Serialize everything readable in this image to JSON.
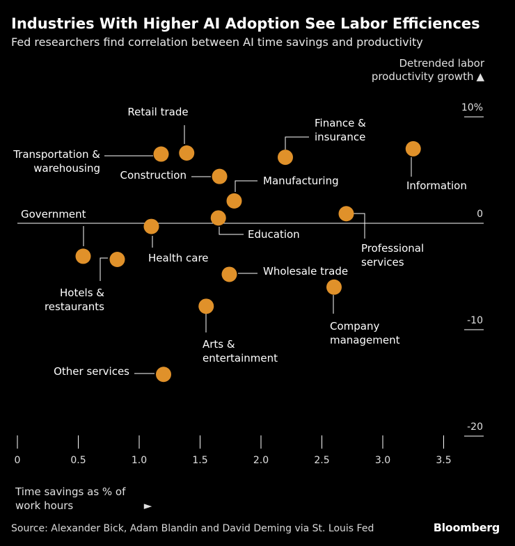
{
  "chart_data": {
    "type": "scatter",
    "title": "Industries With Higher AI Adoption See Labor Efficiences",
    "subtitle": "Fed researchers find correlation between AI time savings and productivity",
    "xlabel": "Time savings as % of work hours",
    "ylabel": "Detrended labor productivity growth",
    "xlim": [
      0,
      3.8
    ],
    "ylim": [
      -20,
      10
    ],
    "x_ticks": [
      {
        "value": 0,
        "label": "0"
      },
      {
        "value": 0.5,
        "label": "0.5"
      },
      {
        "value": 1.0,
        "label": "1.0"
      },
      {
        "value": 1.5,
        "label": "1.5"
      },
      {
        "value": 2.0,
        "label": "2.0"
      },
      {
        "value": 2.5,
        "label": "2.5"
      },
      {
        "value": 3.0,
        "label": "3.0"
      },
      {
        "value": 3.5,
        "label": "3.5"
      }
    ],
    "y_ticks": [
      {
        "value": 10,
        "label": "10%"
      },
      {
        "value": 0,
        "label": "0"
      },
      {
        "value": -10,
        "label": "-10"
      },
      {
        "value": -20,
        "label": "-20"
      }
    ],
    "points": [
      {
        "name": "Retail trade",
        "lines": [
          "Retail trade"
        ],
        "x": 1.39,
        "y": 6.6
      },
      {
        "name": "Transportation & warehousing",
        "lines": [
          "Transportation &",
          "warehousing"
        ],
        "x": 1.18,
        "y": 6.5
      },
      {
        "name": "Construction",
        "lines": [
          "Construction"
        ],
        "x": 1.66,
        "y": 4.4
      },
      {
        "name": "Finance & insurance",
        "lines": [
          "Finance &",
          "insurance"
        ],
        "x": 2.2,
        "y": 6.2
      },
      {
        "name": "Information",
        "lines": [
          "Information"
        ],
        "x": 3.25,
        "y": 7.0
      },
      {
        "name": "Manufacturing",
        "lines": [
          "Manufacturing"
        ],
        "x": 1.78,
        "y": 2.1
      },
      {
        "name": "Government",
        "lines": [
          "Government"
        ],
        "x": 0.54,
        "y": -3.1
      },
      {
        "name": "Health care",
        "lines": [
          "Health care"
        ],
        "x": 1.1,
        "y": -0.3
      },
      {
        "name": "Education",
        "lines": [
          "Education"
        ],
        "x": 1.65,
        "y": 0.5
      },
      {
        "name": "Professional services",
        "lines": [
          "Professional",
          "services"
        ],
        "x": 2.7,
        "y": 0.9
      },
      {
        "name": "Hotels & restaurants",
        "lines": [
          "Hotels &",
          "restaurants"
        ],
        "x": 0.82,
        "y": -3.4
      },
      {
        "name": "Wholesale trade",
        "lines": [
          "Wholesale trade"
        ],
        "x": 1.74,
        "y": -4.8
      },
      {
        "name": "Company management",
        "lines": [
          "Company",
          "management"
        ],
        "x": 2.6,
        "y": -6.0
      },
      {
        "name": "Arts & entertainment",
        "lines": [
          "Arts &",
          "entertainment"
        ],
        "x": 1.55,
        "y": -7.8
      },
      {
        "name": "Other services",
        "lines": [
          "Other services"
        ],
        "x": 1.2,
        "y": -14.2
      }
    ],
    "marker_color": "#e0912a",
    "gridline_color": "#ffffff"
  },
  "header": {
    "title": "Industries With Higher AI Adoption See Labor Efficiences",
    "subtitle": "Fed researchers find correlation between AI time savings and productivity"
  },
  "axis": {
    "ylabel_text": "Detrended labor productivity growth",
    "ylabel_icon": "up-triangle-icon",
    "ylabel_arrow": "▲",
    "xlabel_text": "Time savings as % of work hours",
    "xlabel_icon": "right-triangle-icon",
    "xlabel_arrow": "►"
  },
  "footer": {
    "source": "Source: Alexander Bick, Adam Blandin and David Deming via St. Louis Fed",
    "brand": "Bloomberg"
  }
}
